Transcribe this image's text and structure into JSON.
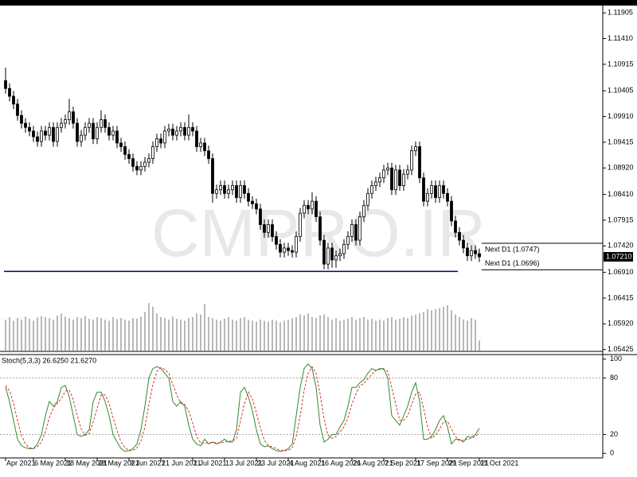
{
  "chart_data": [
    {
      "type": "candlestick",
      "watermark": "CMPRO.IR",
      "categories": [
        "Apr 2021",
        null,
        null,
        null,
        null,
        null,
        null,
        "6 May 2021",
        null,
        null,
        null,
        null,
        null,
        null,
        null,
        "18 May 2021",
        null,
        null,
        null,
        null,
        null,
        null,
        null,
        "28 May 2021",
        null,
        null,
        null,
        null,
        null,
        null,
        null,
        "9 Jun 2021",
        null,
        null,
        null,
        null,
        null,
        null,
        null,
        "21 Jun 2021",
        null,
        null,
        null,
        null,
        null,
        null,
        null,
        "1 Jul 2021",
        null,
        null,
        null,
        null,
        null,
        null,
        null,
        "13 Jul 2021",
        null,
        null,
        null,
        null,
        null,
        null,
        null,
        "23 Jul 2021",
        null,
        null,
        null,
        null,
        null,
        null,
        null,
        "4 Aug 2021",
        null,
        null,
        null,
        null,
        null,
        null,
        null,
        "16 Aug 2021",
        null,
        null,
        null,
        null,
        null,
        null,
        null,
        "26 Aug 2021",
        null,
        null,
        null,
        null,
        null,
        null,
        null,
        "7 Sep 2021",
        null,
        null,
        null,
        null,
        null,
        null,
        null,
        "17 Sep 2021",
        null,
        null,
        null,
        null,
        null,
        null,
        null,
        "29 Sep 2021",
        null,
        null,
        null,
        null,
        null,
        null,
        null,
        "11 Oct 2021"
      ],
      "open": [
        1.106,
        1.1045,
        1.103,
        1.1015,
        1.0993,
        1.0978,
        1.097,
        1.0963,
        1.0952,
        1.0943,
        1.0963,
        1.0955,
        1.097,
        1.0943,
        1.097,
        1.0978,
        1.0985,
        1.1,
        1.0978,
        1.0943,
        1.0955,
        1.097,
        1.0978,
        1.0948,
        1.097,
        1.0985,
        1.097,
        1.0955,
        1.0963,
        1.094,
        1.0933,
        1.0918,
        1.091,
        1.0895,
        1.0888,
        1.0895,
        1.0903,
        1.091,
        1.0933,
        1.0948,
        1.094,
        1.0963,
        1.0967,
        1.0955,
        1.0963,
        1.097,
        1.0955,
        1.097,
        1.0963,
        1.0933,
        1.094,
        1.0925,
        1.091,
        1.0843,
        1.085,
        1.0858,
        1.0843,
        1.085,
        1.0858,
        1.0835,
        1.0858,
        1.0843,
        1.0828,
        1.0823,
        1.0813,
        1.0783,
        1.0768,
        1.0783,
        1.076,
        1.0745,
        1.073,
        1.0738,
        1.0733,
        1.073,
        1.076,
        1.0805,
        1.082,
        1.0813,
        1.0828,
        1.0798,
        1.0753,
        1.0707,
        1.0738,
        1.0715,
        1.0723,
        1.0727,
        1.0745,
        1.076,
        1.0783,
        1.0753,
        1.0798,
        1.082,
        1.0843,
        1.0858,
        1.0865,
        1.0873,
        1.0888,
        1.0892,
        1.085,
        1.0888,
        1.0858,
        1.088,
        1.0888,
        1.0925,
        1.0933,
        1.0873,
        1.0828,
        1.0843,
        1.0858,
        1.0835,
        1.0858,
        1.0843,
        1.0828,
        1.079,
        1.0768,
        1.0753,
        1.0738,
        1.0723,
        1.0733,
        1.0727
      ],
      "high": [
        1.1085,
        1.1055,
        1.104,
        1.1025,
        1.1003,
        1.0988,
        1.098,
        1.0973,
        1.0962,
        1.0973,
        1.0973,
        1.098,
        1.098,
        1.098,
        1.0988,
        1.0995,
        1.1025,
        1.101,
        1.0988,
        1.0965,
        1.098,
        1.0988,
        1.0988,
        1.098,
        1.1003,
        1.0995,
        1.098,
        1.0973,
        1.0973,
        1.095,
        1.0943,
        1.0928,
        1.092,
        1.0905,
        1.0905,
        1.0913,
        1.092,
        1.0943,
        1.0958,
        1.0958,
        1.0973,
        1.0977,
        1.0977,
        1.0973,
        1.098,
        1.098,
        1.0995,
        1.098,
        1.0973,
        1.095,
        1.095,
        1.0935,
        1.092,
        1.086,
        1.0868,
        1.0868,
        1.086,
        1.0868,
        1.0868,
        1.0868,
        1.0868,
        1.0853,
        1.0838,
        1.0833,
        1.0823,
        1.0793,
        1.0793,
        1.0793,
        1.077,
        1.0755,
        1.0748,
        1.0748,
        1.0743,
        1.077,
        1.0815,
        1.083,
        1.083,
        1.0845,
        1.0838,
        1.0808,
        1.0763,
        1.0748,
        1.0748,
        1.0733,
        1.0737,
        1.0755,
        1.077,
        1.0793,
        1.0793,
        1.0808,
        1.083,
        1.0853,
        1.0868,
        1.0875,
        1.0883,
        1.0898,
        1.0902,
        1.0902,
        1.0898,
        1.0898,
        1.089,
        1.0898,
        1.0935,
        1.0943,
        1.0943,
        1.0883,
        1.0853,
        1.0868,
        1.0868,
        1.0868,
        1.0868,
        1.0853,
        1.0838,
        1.08,
        1.0778,
        1.0763,
        1.0748,
        1.0743,
        1.0743,
        1.0737
      ],
      "low": [
        1.1035,
        1.102,
        1.1005,
        1.0983,
        1.0968,
        1.096,
        1.0953,
        1.0942,
        1.0933,
        1.0933,
        1.0945,
        1.0945,
        1.0933,
        1.0933,
        1.096,
        1.0968,
        1.0975,
        1.0968,
        1.0933,
        1.0933,
        1.0945,
        1.096,
        1.0938,
        1.0938,
        1.096,
        1.096,
        1.0945,
        1.0945,
        1.093,
        1.0923,
        1.0908,
        1.09,
        1.0885,
        1.0878,
        1.0878,
        1.0885,
        1.0893,
        1.09,
        1.0923,
        1.093,
        1.093,
        1.0953,
        1.0945,
        1.0945,
        1.0953,
        1.0945,
        1.0945,
        1.0953,
        1.0923,
        1.0923,
        1.0915,
        1.09,
        1.0825,
        1.0833,
        1.084,
        1.0833,
        1.0833,
        1.084,
        1.0825,
        1.0825,
        1.0833,
        1.0818,
        1.0813,
        1.0803,
        1.0773,
        1.0758,
        1.0758,
        1.075,
        1.0735,
        1.072,
        1.072,
        1.0723,
        1.072,
        1.072,
        1.075,
        1.0795,
        1.0803,
        1.0803,
        1.0788,
        1.0743,
        1.0697,
        1.0697,
        1.07,
        1.07,
        1.0713,
        1.0717,
        1.0735,
        1.075,
        1.0743,
        1.0743,
        1.0788,
        1.081,
        1.0833,
        1.0848,
        1.0855,
        1.0863,
        1.0878,
        1.084,
        1.084,
        1.0848,
        1.0848,
        1.087,
        1.0878,
        1.0915,
        1.0863,
        1.0818,
        1.0818,
        1.0833,
        1.0825,
        1.0825,
        1.0833,
        1.0818,
        1.078,
        1.0758,
        1.0743,
        1.0728,
        1.0713,
        1.0713,
        1.0717,
        1.0711
      ],
      "close": [
        1.1045,
        1.103,
        1.1015,
        1.0993,
        1.0978,
        1.097,
        1.0963,
        1.0952,
        1.0943,
        1.0963,
        1.0955,
        1.097,
        1.0943,
        1.097,
        1.0978,
        1.0985,
        1.1,
        1.0978,
        1.0943,
        1.0955,
        1.097,
        1.0978,
        1.0948,
        1.097,
        1.0985,
        1.097,
        1.0955,
        1.0963,
        1.094,
        1.0933,
        1.0918,
        1.091,
        1.0895,
        1.0888,
        1.0895,
        1.0903,
        1.091,
        1.0933,
        1.0948,
        1.094,
        1.0963,
        1.0967,
        1.0955,
        1.0963,
        1.097,
        1.0955,
        1.097,
        1.0963,
        1.0933,
        1.094,
        1.0925,
        1.091,
        1.0843,
        1.085,
        1.0858,
        1.0843,
        1.085,
        1.0858,
        1.0835,
        1.0858,
        1.0843,
        1.0828,
        1.0823,
        1.0813,
        1.0783,
        1.0768,
        1.0783,
        1.076,
        1.0745,
        1.073,
        1.0738,
        1.0733,
        1.073,
        1.076,
        1.0805,
        1.082,
        1.0813,
        1.0828,
        1.0798,
        1.0753,
        1.0707,
        1.0738,
        1.0715,
        1.0723,
        1.0727,
        1.0745,
        1.076,
        1.0783,
        1.0753,
        1.0798,
        1.082,
        1.0843,
        1.0858,
        1.0865,
        1.0873,
        1.0888,
        1.0892,
        1.085,
        1.0888,
        1.0858,
        1.088,
        1.0888,
        1.0925,
        1.0933,
        1.0873,
        1.0828,
        1.0843,
        1.0858,
        1.0835,
        1.0858,
        1.0843,
        1.0828,
        1.079,
        1.0768,
        1.0753,
        1.0738,
        1.0723,
        1.0733,
        1.0727,
        1.0721
      ],
      "volume": [
        1.06,
        1.0605,
        1.0598,
        1.0603,
        1.06,
        1.0606,
        1.0602,
        1.0598,
        1.0604,
        1.0607,
        1.0605,
        1.0603,
        1.06,
        1.0608,
        1.0612,
        1.0606,
        1.0603,
        1.06,
        1.0605,
        1.0603,
        1.0607,
        1.0602,
        1.06,
        1.0605,
        1.0603,
        1.06,
        1.0598,
        1.0605,
        1.0601,
        1.0603,
        1.06,
        1.0598,
        1.0603,
        1.0602,
        1.0606,
        1.0615,
        1.0632,
        1.0625,
        1.0612,
        1.0605,
        1.0603,
        1.06,
        1.0606,
        1.0602,
        1.06,
        1.0598,
        1.0603,
        1.0605,
        1.0612,
        1.061,
        1.063,
        1.0605,
        1.0603,
        1.06,
        1.0598,
        1.0602,
        1.0605,
        1.06,
        1.0598,
        1.0603,
        1.0605,
        1.06,
        1.0598,
        1.0596,
        1.06,
        1.0598,
        1.0596,
        1.06,
        1.0598,
        1.0595,
        1.0598,
        1.06,
        1.0603,
        1.0605,
        1.061,
        1.0608,
        1.0612,
        1.0605,
        1.0603,
        1.0608,
        1.061,
        1.0605,
        1.06,
        1.0603,
        1.0598,
        1.06,
        1.0602,
        1.0605,
        1.06,
        1.0603,
        1.0605,
        1.06,
        1.0602,
        1.0598,
        1.06,
        1.0598,
        1.0603,
        1.0605,
        1.06,
        1.0602,
        1.0605,
        1.0603,
        1.0608,
        1.061,
        1.0612,
        1.0615,
        1.062,
        1.0618,
        1.062,
        1.0622,
        1.0625,
        1.0628,
        1.0618,
        1.061,
        1.0605,
        1.06,
        1.0598,
        1.0603,
        1.06,
        1.056
      ],
      "ylim": [
        1.0539,
        1.1203
      ],
      "yticks": [
        1.11905,
        {
          "value": 1.1141,
          "label": "1.11410"
        },
        1.10915,
        1.10405,
        {
          "value": 1.0991,
          "label": "1.09910"
        },
        1.09415,
        {
          "value": 1.0892,
          "label": "1.08920"
        },
        {
          "value": 1.0841,
          "label": "1.08410"
        },
        1.07915,
        {
          "value": 1.0742,
          "label": "1.07420"
        },
        {
          "value": 1.0691,
          "label": "1.06910"
        },
        1.06415,
        {
          "value": 1.0592,
          "label": "1.05920"
        },
        1.05425
      ],
      "hline": {
        "value": 1.0693,
        "color": "#000080"
      },
      "levels": [
        {
          "value": 1.0747,
          "label": "Next D1 (1.0747)"
        },
        {
          "value": 1.0696,
          "label": "Next D1 (1.0696)"
        }
      ],
      "last_price": {
        "value": 1.0721,
        "label": "1.07210"
      },
      "up_color": "#ffffff",
      "down_color": "#000000",
      "volume_color": "#707070"
    },
    {
      "type": "line",
      "title": "Stoch(5,3,3) 26.6250 21.6270",
      "ylim": [
        -4,
        104
      ],
      "yticks": [
        100,
        80,
        20,
        0
      ],
      "levels": [
        80,
        20
      ],
      "series": [
        {
          "color": "#2e8b2e",
          "dash": false,
          "values": [
            70,
            55,
            35,
            15,
            8,
            6,
            5,
            5,
            10,
            20,
            40,
            55,
            50,
            55,
            70,
            72,
            60,
            40,
            20,
            18,
            20,
            25,
            55,
            65,
            65,
            55,
            40,
            20,
            12,
            5,
            2,
            3,
            5,
            10,
            25,
            50,
            80,
            90,
            92,
            90,
            85,
            80,
            55,
            50,
            55,
            50,
            30,
            15,
            10,
            8,
            15,
            10,
            12,
            10,
            12,
            15,
            12,
            12,
            25,
            65,
            70,
            60,
            45,
            25,
            10,
            7,
            8,
            5,
            3,
            2,
            3,
            5,
            10,
            40,
            70,
            90,
            95,
            90,
            70,
            30,
            12,
            15,
            20,
            20,
            28,
            35,
            50,
            70,
            70,
            75,
            78,
            85,
            90,
            88,
            90,
            90,
            80,
            40,
            35,
            30,
            40,
            50,
            65,
            75,
            55,
            15,
            15,
            18,
            25,
            35,
            40,
            28,
            10,
            15,
            15,
            12,
            18,
            17,
            20,
            26.625
          ]
        },
        {
          "color": "#e03030",
          "dash": true,
          "values": [
            72,
            66,
            53,
            35,
            19,
            10,
            6,
            5,
            7,
            12,
            23,
            38,
            48,
            53,
            58,
            66,
            67,
            57,
            40,
            26,
            19,
            21,
            33,
            48,
            62,
            62,
            53,
            38,
            24,
            12,
            6,
            3,
            3,
            6,
            13,
            28,
            52,
            73,
            87,
            91,
            89,
            85,
            73,
            62,
            53,
            52,
            45,
            32,
            18,
            11,
            11,
            11,
            12,
            11,
            11,
            12,
            13,
            13,
            16,
            34,
            53,
            65,
            58,
            43,
            27,
            14,
            8,
            7,
            5,
            3,
            3,
            3,
            6,
            18,
            40,
            67,
            85,
            92,
            85,
            63,
            37,
            19,
            16,
            18,
            23,
            28,
            38,
            52,
            63,
            72,
            74,
            79,
            84,
            88,
            89,
            89,
            87,
            70,
            52,
            35,
            35,
            40,
            52,
            63,
            65,
            48,
            28,
            16,
            19,
            26,
            33,
            34,
            26,
            18,
            13,
            14,
            15,
            16,
            18,
            21.627
          ]
        }
      ]
    }
  ]
}
